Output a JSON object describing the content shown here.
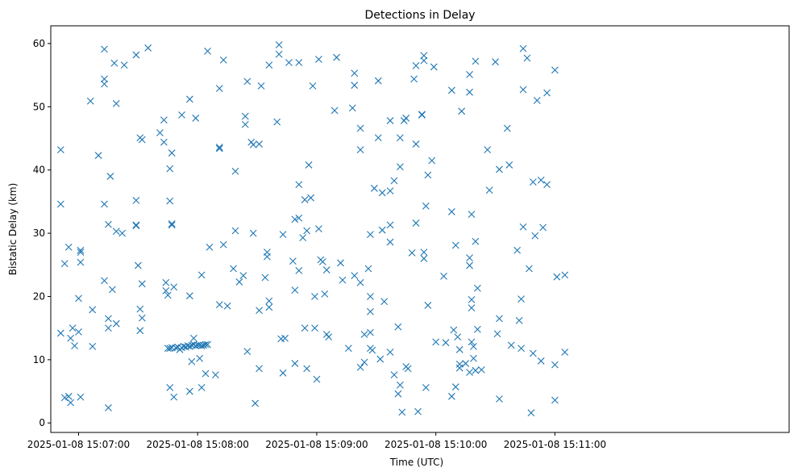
{
  "chart_data": {
    "type": "scatter",
    "title": "Detections in Delay",
    "xlabel": "Time (UTC)",
    "ylabel": "Bistatic Delay (km)",
    "marker": "x",
    "color": "#1f77b4",
    "grid": false,
    "xlim": [
      "15:06:46",
      "15:12:58"
    ],
    "ylim": [
      -1.5,
      62.8
    ],
    "x_ticks": [
      {
        "t": "15:07:00",
        "label": "2025-01-08 15:07:00"
      },
      {
        "t": "15:08:00",
        "label": "2025-01-08 15:08:00"
      },
      {
        "t": "15:09:00",
        "label": "2025-01-08 15:09:00"
      },
      {
        "t": "15:10:00",
        "label": "2025-01-08 15:10:00"
      },
      {
        "t": "15:11:00",
        "label": "2025-01-08 15:11:00"
      }
    ],
    "y_ticks": [
      0,
      10,
      20,
      30,
      40,
      50,
      60
    ],
    "points": [
      [
        "15:06:51",
        43.2
      ],
      [
        "15:06:51",
        34.6
      ],
      [
        "15:06:51",
        14.2
      ],
      [
        "15:06:53",
        25.2
      ],
      [
        "15:06:53",
        4.0
      ],
      [
        "15:06:55",
        27.8
      ],
      [
        "15:06:55",
        4.2
      ],
      [
        "15:06:56",
        13.4
      ],
      [
        "15:06:56",
        3.2
      ],
      [
        "15:06:57",
        15.0
      ],
      [
        "15:06:58",
        12.2
      ],
      [
        "15:07:00",
        19.7
      ],
      [
        "15:07:00",
        14.4
      ],
      [
        "15:07:01",
        27.3
      ],
      [
        "15:07:01",
        27.0
      ],
      [
        "15:07:01",
        25.4
      ],
      [
        "15:07:01",
        4.1
      ],
      [
        "15:07:06",
        50.9
      ],
      [
        "15:07:07",
        12.1
      ],
      [
        "15:07:07",
        17.9
      ],
      [
        "15:07:10",
        42.3
      ],
      [
        "15:07:13",
        59.1
      ],
      [
        "15:07:13",
        54.4
      ],
      [
        "15:07:13",
        53.6
      ],
      [
        "15:07:13",
        34.6
      ],
      [
        "15:07:13",
        22.5
      ],
      [
        "15:07:15",
        31.4
      ],
      [
        "15:07:15",
        16.5
      ],
      [
        "15:07:15",
        15.0
      ],
      [
        "15:07:15",
        2.4
      ],
      [
        "15:07:16",
        39.0
      ],
      [
        "15:07:17",
        21.1
      ],
      [
        "15:07:18",
        56.9
      ],
      [
        "15:07:19",
        50.5
      ],
      [
        "15:07:19",
        30.3
      ],
      [
        "15:07:19",
        15.7
      ],
      [
        "15:07:22",
        30.0
      ],
      [
        "15:07:23",
        56.6
      ],
      [
        "15:07:29",
        58.2
      ],
      [
        "15:07:29",
        35.2
      ],
      [
        "15:07:29",
        31.3
      ],
      [
        "15:07:29",
        31.2
      ],
      [
        "15:07:30",
        24.9
      ],
      [
        "15:07:31",
        45.1
      ],
      [
        "15:07:31",
        18.0
      ],
      [
        "15:07:31",
        14.6
      ],
      [
        "15:07:32",
        44.8
      ],
      [
        "15:07:32",
        16.6
      ],
      [
        "15:07:32",
        22.0
      ],
      [
        "15:07:35",
        59.3
      ],
      [
        "15:07:41",
        45.9
      ],
      [
        "15:07:43",
        47.9
      ],
      [
        "15:07:43",
        44.4
      ],
      [
        "15:07:44",
        22.2
      ],
      [
        "15:07:44",
        20.9
      ],
      [
        "15:07:45",
        20.2
      ],
      [
        "15:07:45",
        11.8
      ],
      [
        "15:07:46",
        40.2
      ],
      [
        "15:07:46",
        35.1
      ],
      [
        "15:07:46",
        11.8
      ],
      [
        "15:07:46",
        5.6
      ],
      [
        "15:07:47",
        42.7
      ],
      [
        "15:07:47",
        31.5
      ],
      [
        "15:07:47",
        31.3
      ],
      [
        "15:07:47",
        11.9
      ],
      [
        "15:07:48",
        21.5
      ],
      [
        "15:07:48",
        4.1
      ],
      [
        "15:07:49",
        11.9
      ],
      [
        "15:07:50",
        12.0
      ],
      [
        "15:07:51",
        11.6
      ],
      [
        "15:07:52",
        48.7
      ],
      [
        "15:07:52",
        11.9
      ],
      [
        "15:07:53",
        12.1
      ],
      [
        "15:07:54",
        12.0
      ],
      [
        "15:07:55",
        12.2
      ],
      [
        "15:07:56",
        51.2
      ],
      [
        "15:07:56",
        12.1
      ],
      [
        "15:07:56",
        20.1
      ],
      [
        "15:07:56",
        5.0
      ],
      [
        "15:07:57",
        12.3
      ],
      [
        "15:07:57",
        9.7
      ],
      [
        "15:07:58",
        13.4
      ],
      [
        "15:07:58",
        12.4
      ],
      [
        "15:07:59",
        48.2
      ],
      [
        "15:07:59",
        12.2
      ],
      [
        "15:08:00",
        12.3
      ],
      [
        "15:08:01",
        12.3
      ],
      [
        "15:08:01",
        10.2
      ],
      [
        "15:08:02",
        23.4
      ],
      [
        "15:08:02",
        12.2
      ],
      [
        "15:08:02",
        5.6
      ],
      [
        "15:08:03",
        12.3
      ],
      [
        "15:08:04",
        12.4
      ],
      [
        "15:08:04",
        7.8
      ],
      [
        "15:08:05",
        12.4
      ],
      [
        "15:08:05",
        58.8
      ],
      [
        "15:08:06",
        27.8
      ],
      [
        "15:08:09",
        7.6
      ],
      [
        "15:08:11",
        52.9
      ],
      [
        "15:08:11",
        43.6
      ],
      [
        "15:08:11",
        43.4
      ],
      [
        "15:08:11",
        18.7
      ],
      [
        "15:08:13",
        57.4
      ],
      [
        "15:08:13",
        28.2
      ],
      [
        "15:08:15",
        18.5
      ],
      [
        "15:08:18",
        24.4
      ],
      [
        "15:08:19",
        30.4
      ],
      [
        "15:08:19",
        39.8
      ],
      [
        "15:08:21",
        22.3
      ],
      [
        "15:08:23",
        23.3
      ],
      [
        "15:08:24",
        48.5
      ],
      [
        "15:08:24",
        47.2
      ],
      [
        "15:08:25",
        54.0
      ],
      [
        "15:08:25",
        11.3
      ],
      [
        "15:08:27",
        44.4
      ],
      [
        "15:08:28",
        44.0
      ],
      [
        "15:08:28",
        30.0
      ],
      [
        "15:08:29",
        3.1
      ],
      [
        "15:08:31",
        44.1
      ],
      [
        "15:08:31",
        17.8
      ],
      [
        "15:08:31",
        8.6
      ],
      [
        "15:08:32",
        53.3
      ],
      [
        "15:08:34",
        23.0
      ],
      [
        "15:08:35",
        26.3
      ],
      [
        "15:08:35",
        27.0
      ],
      [
        "15:08:36",
        19.3
      ],
      [
        "15:08:36",
        18.3
      ],
      [
        "15:08:36",
        56.6
      ],
      [
        "15:08:40",
        47.6
      ],
      [
        "15:08:41",
        59.8
      ],
      [
        "15:08:41",
        58.3
      ],
      [
        "15:08:42",
        13.3
      ],
      [
        "15:08:43",
        29.8
      ],
      [
        "15:08:43",
        7.9
      ],
      [
        "15:08:44",
        13.4
      ],
      [
        "15:08:46",
        57.0
      ],
      [
        "15:08:48",
        25.6
      ],
      [
        "15:08:49",
        32.2
      ],
      [
        "15:08:49",
        21.0
      ],
      [
        "15:08:49",
        9.4
      ],
      [
        "15:08:51",
        57.0
      ],
      [
        "15:08:51",
        37.7
      ],
      [
        "15:08:51",
        32.4
      ],
      [
        "15:08:51",
        24.1
      ],
      [
        "15:08:53",
        29.3
      ],
      [
        "15:08:54",
        35.3
      ],
      [
        "15:08:54",
        15.0
      ],
      [
        "15:08:55",
        30.4
      ],
      [
        "15:08:55",
        8.6
      ],
      [
        "15:08:56",
        40.8
      ],
      [
        "15:08:57",
        35.6
      ],
      [
        "15:08:58",
        53.3
      ],
      [
        "15:08:59",
        15.0
      ],
      [
        "15:08:59",
        20.0
      ],
      [
        "15:09:00",
        6.9
      ],
      [
        "15:09:01",
        30.7
      ],
      [
        "15:09:01",
        57.5
      ],
      [
        "15:09:02",
        25.8
      ],
      [
        "15:09:03",
        25.5
      ],
      [
        "15:09:04",
        20.4
      ],
      [
        "15:09:05",
        24.2
      ],
      [
        "15:09:05",
        14.0
      ],
      [
        "15:09:06",
        13.6
      ],
      [
        "15:09:09",
        49.4
      ],
      [
        "15:09:10",
        57.8
      ],
      [
        "15:09:12",
        25.3
      ],
      [
        "15:09:13",
        22.6
      ],
      [
        "15:09:16",
        11.8
      ],
      [
        "15:09:18",
        49.8
      ],
      [
        "15:09:19",
        55.3
      ],
      [
        "15:09:19",
        53.4
      ],
      [
        "15:09:19",
        23.3
      ],
      [
        "15:09:22",
        46.6
      ],
      [
        "15:09:22",
        43.2
      ],
      [
        "15:09:22",
        22.2
      ],
      [
        "15:09:22",
        8.8
      ],
      [
        "15:09:24",
        14.0
      ],
      [
        "15:09:24",
        9.6
      ],
      [
        "15:09:26",
        24.4
      ],
      [
        "15:09:27",
        29.8
      ],
      [
        "15:09:27",
        20.0
      ],
      [
        "15:09:27",
        17.6
      ],
      [
        "15:09:27",
        14.3
      ],
      [
        "15:09:27",
        11.8
      ],
      [
        "15:09:28",
        11.5
      ],
      [
        "15:09:29",
        37.1
      ],
      [
        "15:09:31",
        54.1
      ],
      [
        "15:09:31",
        45.1
      ],
      [
        "15:09:32",
        10.1
      ],
      [
        "15:09:33",
        36.4
      ],
      [
        "15:09:33",
        30.5
      ],
      [
        "15:09:34",
        19.2
      ],
      [
        "15:09:37",
        47.8
      ],
      [
        "15:09:37",
        36.7
      ],
      [
        "15:09:37",
        31.3
      ],
      [
        "15:09:37",
        28.6
      ],
      [
        "15:09:37",
        11.2
      ],
      [
        "15:09:39",
        38.3
      ],
      [
        "15:09:39",
        7.6
      ],
      [
        "15:09:41",
        15.2
      ],
      [
        "15:09:41",
        4.6
      ],
      [
        "15:09:42",
        45.1
      ],
      [
        "15:09:42",
        40.5
      ],
      [
        "15:09:42",
        6.0
      ],
      [
        "15:09:43",
        1.7
      ],
      [
        "15:09:44",
        47.8
      ],
      [
        "15:09:45",
        8.9
      ],
      [
        "15:09:45",
        48.2
      ],
      [
        "15:09:46",
        8.6
      ],
      [
        "15:09:48",
        26.9
      ],
      [
        "15:09:49",
        54.4
      ],
      [
        "15:09:50",
        56.5
      ],
      [
        "15:09:50",
        31.6
      ],
      [
        "15:09:50",
        44.1
      ],
      [
        "15:09:51",
        1.8
      ],
      [
        "15:09:53",
        48.8
      ],
      [
        "15:09:53",
        48.7
      ],
      [
        "15:09:54",
        57.3
      ],
      [
        "15:09:54",
        58.1
      ],
      [
        "15:09:54",
        27.0
      ],
      [
        "15:09:54",
        26.0
      ],
      [
        "15:09:55",
        34.3
      ],
      [
        "15:09:55",
        5.6
      ],
      [
        "15:09:56",
        39.2
      ],
      [
        "15:09:56",
        18.6
      ],
      [
        "15:09:58",
        41.5
      ],
      [
        "15:09:59",
        56.3
      ],
      [
        "15:10:00",
        12.8
      ],
      [
        "15:10:04",
        23.2
      ],
      [
        "15:10:05",
        12.7
      ],
      [
        "15:10:08",
        52.6
      ],
      [
        "15:10:08",
        33.4
      ],
      [
        "15:10:08",
        4.2
      ],
      [
        "15:10:09",
        14.7
      ],
      [
        "15:10:10",
        28.1
      ],
      [
        "15:10:10",
        5.7
      ],
      [
        "15:10:11",
        13.6
      ],
      [
        "15:10:12",
        11.6
      ],
      [
        "15:10:12",
        9.3
      ],
      [
        "15:10:12",
        8.7
      ],
      [
        "15:10:13",
        49.3
      ],
      [
        "15:10:15",
        9.4
      ],
      [
        "15:10:17",
        52.3
      ],
      [
        "15:10:17",
        26.1
      ],
      [
        "15:10:17",
        24.9
      ],
      [
        "15:10:17",
        8.0
      ],
      [
        "15:10:17",
        55.1
      ],
      [
        "15:10:18",
        33.0
      ],
      [
        "15:10:18",
        19.5
      ],
      [
        "15:10:18",
        18.2
      ],
      [
        "15:10:18",
        12.8
      ],
      [
        "15:10:19",
        10.2
      ],
      [
        "15:10:19",
        12.1
      ],
      [
        "15:10:20",
        28.7
      ],
      [
        "15:10:20",
        8.3
      ],
      [
        "15:10:20",
        57.2
      ],
      [
        "15:10:21",
        21.3
      ],
      [
        "15:10:21",
        14.8
      ],
      [
        "15:10:23",
        8.4
      ],
      [
        "15:10:26",
        43.2
      ],
      [
        "15:10:27",
        36.8
      ],
      [
        "15:10:30",
        57.1
      ],
      [
        "15:10:31",
        14.1
      ],
      [
        "15:10:32",
        40.1
      ],
      [
        "15:10:32",
        16.5
      ],
      [
        "15:10:32",
        3.8
      ],
      [
        "15:10:36",
        46.6
      ],
      [
        "15:10:37",
        40.8
      ],
      [
        "15:10:38",
        12.3
      ],
      [
        "15:10:41",
        27.3
      ],
      [
        "15:10:42",
        16.2
      ],
      [
        "15:10:43",
        19.6
      ],
      [
        "15:10:43",
        11.8
      ],
      [
        "15:10:44",
        31.0
      ],
      [
        "15:10:44",
        59.2
      ],
      [
        "15:10:44",
        52.7
      ],
      [
        "15:10:46",
        57.7
      ],
      [
        "15:10:47",
        24.4
      ],
      [
        "15:10:48",
        1.6
      ],
      [
        "15:10:49",
        38.1
      ],
      [
        "15:10:49",
        11.0
      ],
      [
        "15:10:50",
        29.6
      ],
      [
        "15:10:51",
        51.0
      ],
      [
        "15:10:53",
        38.4
      ],
      [
        "15:10:53",
        9.8
      ],
      [
        "15:10:54",
        30.9
      ],
      [
        "15:10:56",
        52.2
      ],
      [
        "15:10:56",
        37.7
      ],
      [
        "15:11:00",
        55.8
      ],
      [
        "15:11:00",
        9.2
      ],
      [
        "15:11:00",
        3.6
      ],
      [
        "15:11:01",
        23.1
      ],
      [
        "15:11:05",
        23.4
      ],
      [
        "15:11:05",
        11.2
      ]
    ]
  }
}
